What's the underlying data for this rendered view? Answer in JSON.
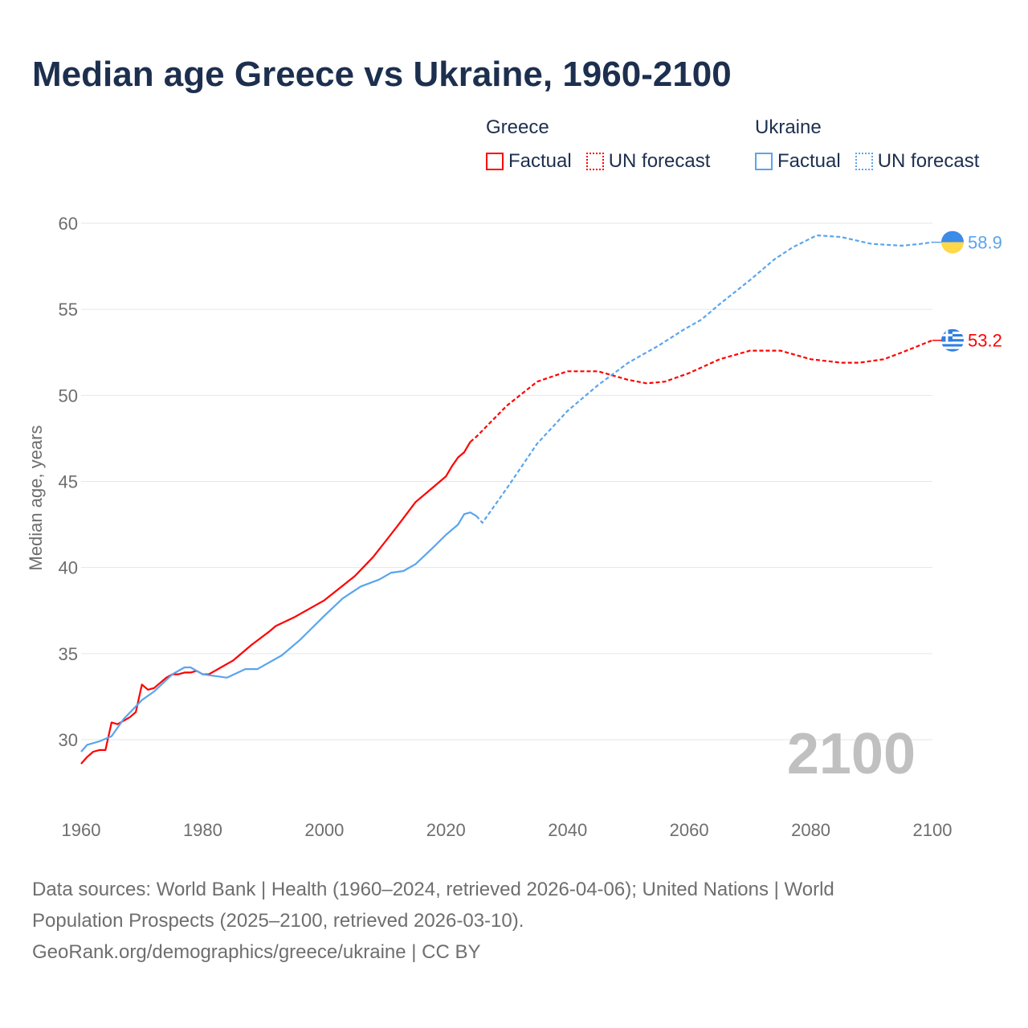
{
  "title": "Median age Greece vs Ukraine, 1960-2100",
  "legend": {
    "groups": [
      {
        "name": "Greece",
        "factual": "Factual",
        "forecast": "UN forecast",
        "color": "#ff0000"
      },
      {
        "name": "Ukraine",
        "factual": "Factual",
        "forecast": "UN forecast",
        "color": "#5aa5ee"
      }
    ]
  },
  "year_watermark": "2100",
  "footer": {
    "line1": "Data sources: World Bank | Health (1960–2024, retrieved 2026-04-06); United Nations | World",
    "line2": "Population Prospects (2025–2100, retrieved 2026-03-10).",
    "line3": "GeoRank.org/demographics/greece/ukraine | CC BY"
  },
  "chart_data": {
    "type": "line",
    "title": "Median age Greece vs Ukraine, 1960-2100",
    "xlabel": "",
    "ylabel": "Median age, years",
    "xlim": [
      1960,
      2100
    ],
    "ylim": [
      27,
      61
    ],
    "xticks": [
      1960,
      1980,
      2000,
      2020,
      2040,
      2060,
      2080,
      2100
    ],
    "yticks": [
      30,
      35,
      40,
      45,
      50,
      55,
      60
    ],
    "grid": true,
    "legend_position": "top-right",
    "series": [
      {
        "name": "Greece",
        "kind": "factual",
        "color": "#ff0000",
        "x": [
          1960,
          1961,
          1962,
          1963,
          1964,
          1965,
          1966,
          1967,
          1968,
          1969,
          1970,
          1971,
          1972,
          1973,
          1974,
          1975,
          1976,
          1977,
          1978,
          1979,
          1980,
          1981,
          1982,
          1983,
          1984,
          1985,
          1988,
          1991,
          1992,
          1995,
          2000,
          2005,
          2008,
          2010,
          2012,
          2015,
          2017,
          2020,
          2021,
          2022,
          2023,
          2024
        ],
        "y": [
          28.6,
          29.0,
          29.3,
          29.4,
          29.4,
          31.0,
          30.9,
          31.1,
          31.3,
          31.6,
          33.2,
          32.9,
          33.0,
          33.3,
          33.6,
          33.8,
          33.8,
          33.9,
          33.9,
          34.0,
          33.8,
          33.8,
          34.0,
          34.2,
          34.4,
          34.6,
          35.5,
          36.3,
          36.6,
          37.1,
          38.1,
          39.5,
          40.6,
          41.5,
          42.4,
          43.8,
          44.4,
          45.3,
          45.9,
          46.4,
          46.7,
          47.3
        ]
      },
      {
        "name": "Greece",
        "kind": "forecast",
        "color": "#ff0000",
        "x": [
          2024,
          2025,
          2030,
          2035,
          2040,
          2045,
          2050,
          2053,
          2056,
          2060,
          2065,
          2070,
          2075,
          2080,
          2085,
          2088,
          2092,
          2095,
          2100
        ],
        "y": [
          47.3,
          47.6,
          49.4,
          50.8,
          51.4,
          51.4,
          50.9,
          50.7,
          50.8,
          51.3,
          52.1,
          52.6,
          52.6,
          52.1,
          51.9,
          51.9,
          52.1,
          52.5,
          53.2
        ]
      },
      {
        "name": "Ukraine",
        "kind": "factual",
        "color": "#5aa5ee",
        "x": [
          1960,
          1961,
          1963,
          1965,
          1967,
          1970,
          1972,
          1975,
          1977,
          1978,
          1980,
          1982,
          1984,
          1987,
          1989,
          1993,
          1996,
          2000,
          2003,
          2006,
          2009,
          2011,
          2013,
          2015,
          2018,
          2020,
          2022,
          2023,
          2024,
          2025
        ],
        "y": [
          29.3,
          29.7,
          29.9,
          30.2,
          31.2,
          32.3,
          32.8,
          33.8,
          34.2,
          34.2,
          33.8,
          33.7,
          33.6,
          34.1,
          34.1,
          34.9,
          35.8,
          37.2,
          38.2,
          38.9,
          39.3,
          39.7,
          39.8,
          40.2,
          41.2,
          41.9,
          42.5,
          43.1,
          43.2,
          43.0
        ]
      },
      {
        "name": "Ukraine",
        "kind": "forecast",
        "color": "#5aa5ee",
        "x": [
          2025,
          2026,
          2030,
          2035,
          2040,
          2045,
          2050,
          2055,
          2059,
          2062,
          2065,
          2070,
          2074,
          2077,
          2081,
          2085,
          2090,
          2095,
          2098,
          2100
        ],
        "y": [
          43.0,
          42.6,
          44.6,
          47.2,
          49.1,
          50.6,
          51.9,
          52.9,
          53.8,
          54.4,
          55.3,
          56.7,
          57.9,
          58.6,
          59.3,
          59.2,
          58.8,
          58.7,
          58.8,
          58.9
        ]
      }
    ],
    "end_labels": [
      {
        "name": "Ukraine",
        "value": "58.9",
        "color": "#5aa5ee"
      },
      {
        "name": "Greece",
        "value": "53.2",
        "color": "#ff0000"
      }
    ]
  }
}
